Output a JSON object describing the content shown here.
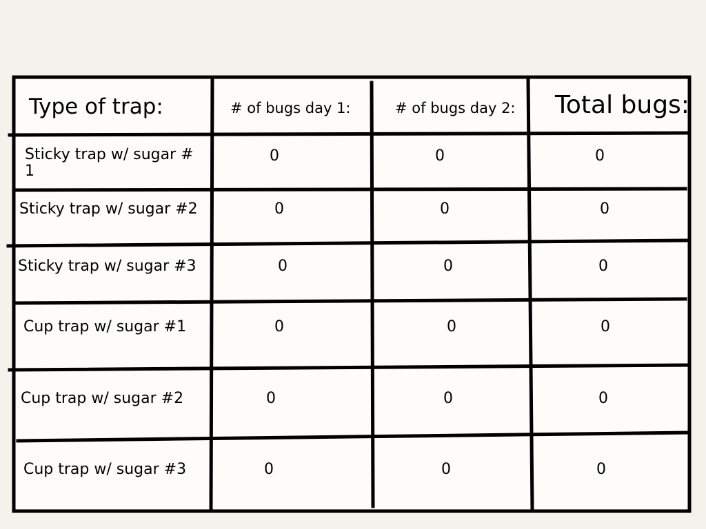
{
  "table": {
    "headers": [
      "Type of trap:",
      "# of bugs day 1:",
      "# of bugs day 2:",
      "Total bugs:"
    ],
    "rows": [
      [
        "Sticky trap w/ sugar # 1",
        0,
        0,
        0
      ],
      [
        "Sticky trap w/ sugar #2",
        0,
        0,
        0
      ],
      [
        "Sticky trap w/ sugar #3",
        0,
        0,
        0
      ],
      [
        "Cup trap w/ sugar #1",
        0,
        0,
        0
      ],
      [
        "Cup trap w/ sugar #2",
        0,
        0,
        0
      ],
      [
        "Cup trap w/ sugar #3",
        0,
        0,
        0
      ]
    ]
  }
}
